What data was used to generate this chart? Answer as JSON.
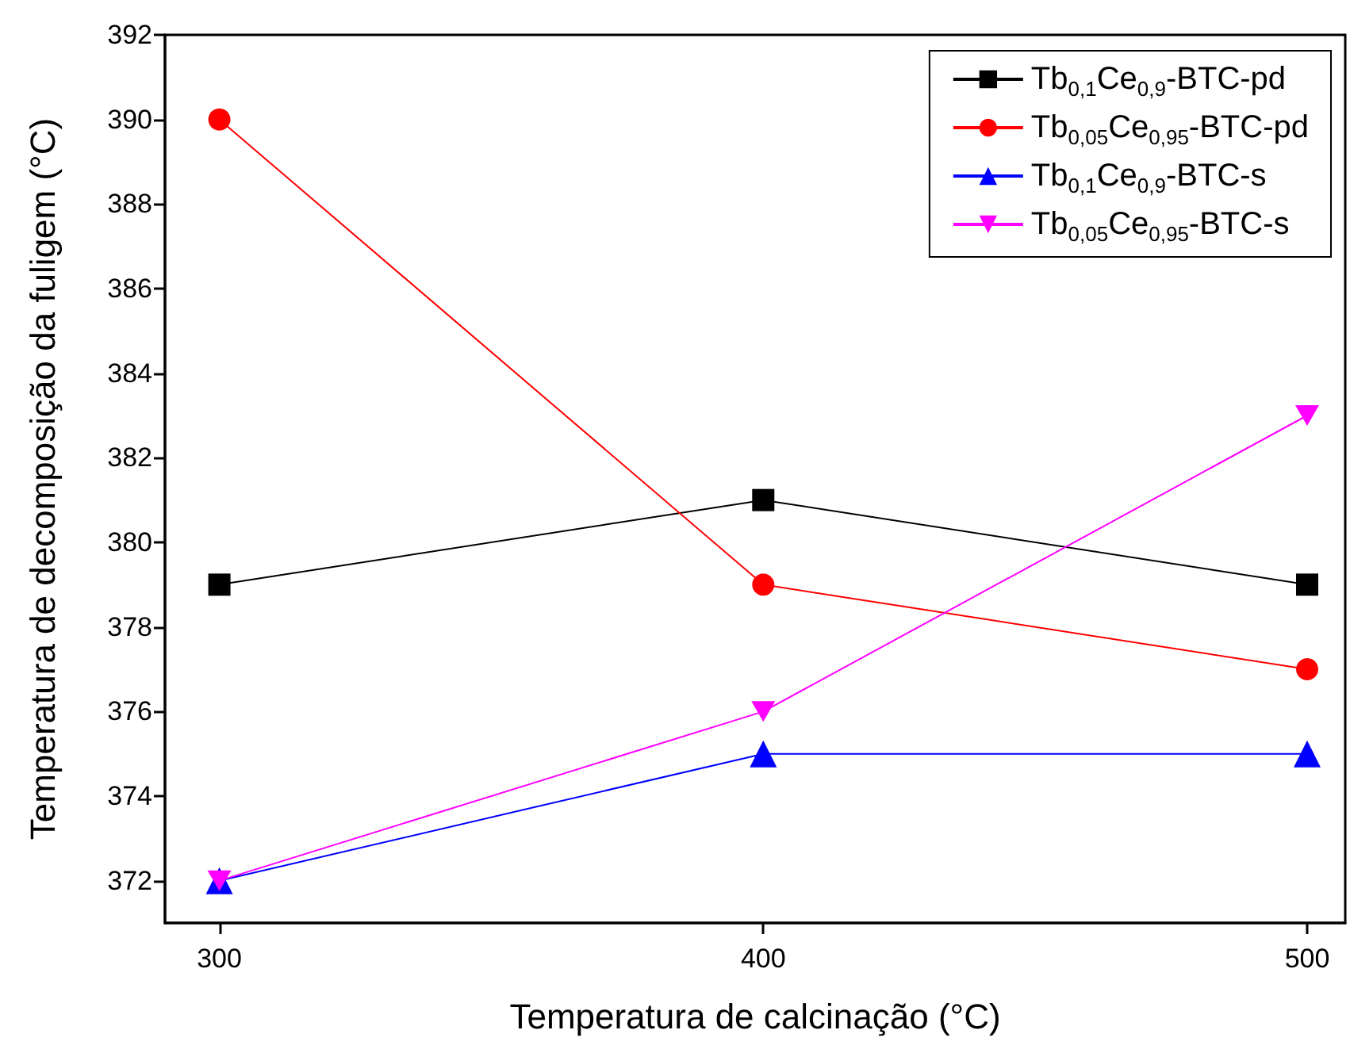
{
  "chart_data": {
    "type": "line",
    "xlabel": "Temperatura de calcinação (°C)",
    "ylabel": "Temperatura de decomposição da fuligem (°C)",
    "x": [
      300,
      400,
      500
    ],
    "series": [
      {
        "name": "Tb$_{0,1}$Ce$_{0,9}$-BTC-pd",
        "color": "#000000",
        "marker": "square",
        "values": [
          379,
          381,
          379
        ]
      },
      {
        "name": "Tb$_{0,05}$Ce$_{0,95}$-BTC-pd",
        "color": "#ff0000",
        "marker": "circle",
        "values": [
          390,
          379,
          377
        ]
      },
      {
        "name": "Tb$_{0,1}$Ce$_{0,9}$-BTC-s",
        "color": "#0000ff",
        "marker": "triangle",
        "values": [
          372,
          375,
          375
        ]
      },
      {
        "name": "Tb$_{0,05}$Ce$_{0,95}$-BTC-s",
        "color": "#ff00ff",
        "marker": "triangle-down",
        "values": [
          372,
          376,
          383
        ]
      }
    ],
    "xlim": [
      290,
      507
    ],
    "xticks": [
      300,
      400,
      500
    ],
    "ylim": [
      371,
      392
    ],
    "yticks": [
      372,
      374,
      376,
      378,
      380,
      382,
      384,
      386,
      388,
      390,
      392
    ],
    "grid": false,
    "legend": "top right",
    "line_style": "solid"
  }
}
